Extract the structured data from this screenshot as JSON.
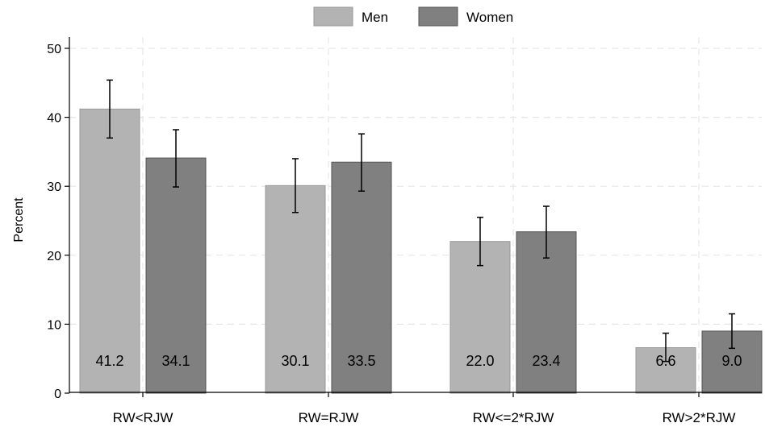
{
  "chart_data": {
    "type": "bar",
    "categories": [
      "RW<RJW",
      "RW=RJW",
      "RW<=2*RJW",
      "RW>2*RJW"
    ],
    "series": [
      {
        "name": "Men",
        "values": [
          41.2,
          30.1,
          22.0,
          6.6
        ],
        "ci_low": [
          37.0,
          26.2,
          18.5,
          4.6
        ],
        "ci_high": [
          45.4,
          34.0,
          25.5,
          8.7
        ],
        "labels": [
          "41.2",
          "30.1",
          "22.0",
          "6.6"
        ],
        "color": "#b3b3b3"
      },
      {
        "name": "Women",
        "values": [
          34.1,
          33.5,
          23.4,
          9.0
        ],
        "ci_low": [
          29.9,
          29.3,
          19.6,
          6.5
        ],
        "ci_high": [
          38.2,
          37.6,
          27.1,
          11.5
        ],
        "labels": [
          "34.1",
          "33.5",
          "23.4",
          "9.0"
        ],
        "color": "#808080"
      }
    ],
    "ylabel": "Percent",
    "xlabel": "",
    "ylim": [
      0,
      50
    ],
    "yticks": [
      0,
      10,
      20,
      30,
      40,
      50
    ],
    "grid": true,
    "legend_position": "top-center"
  }
}
